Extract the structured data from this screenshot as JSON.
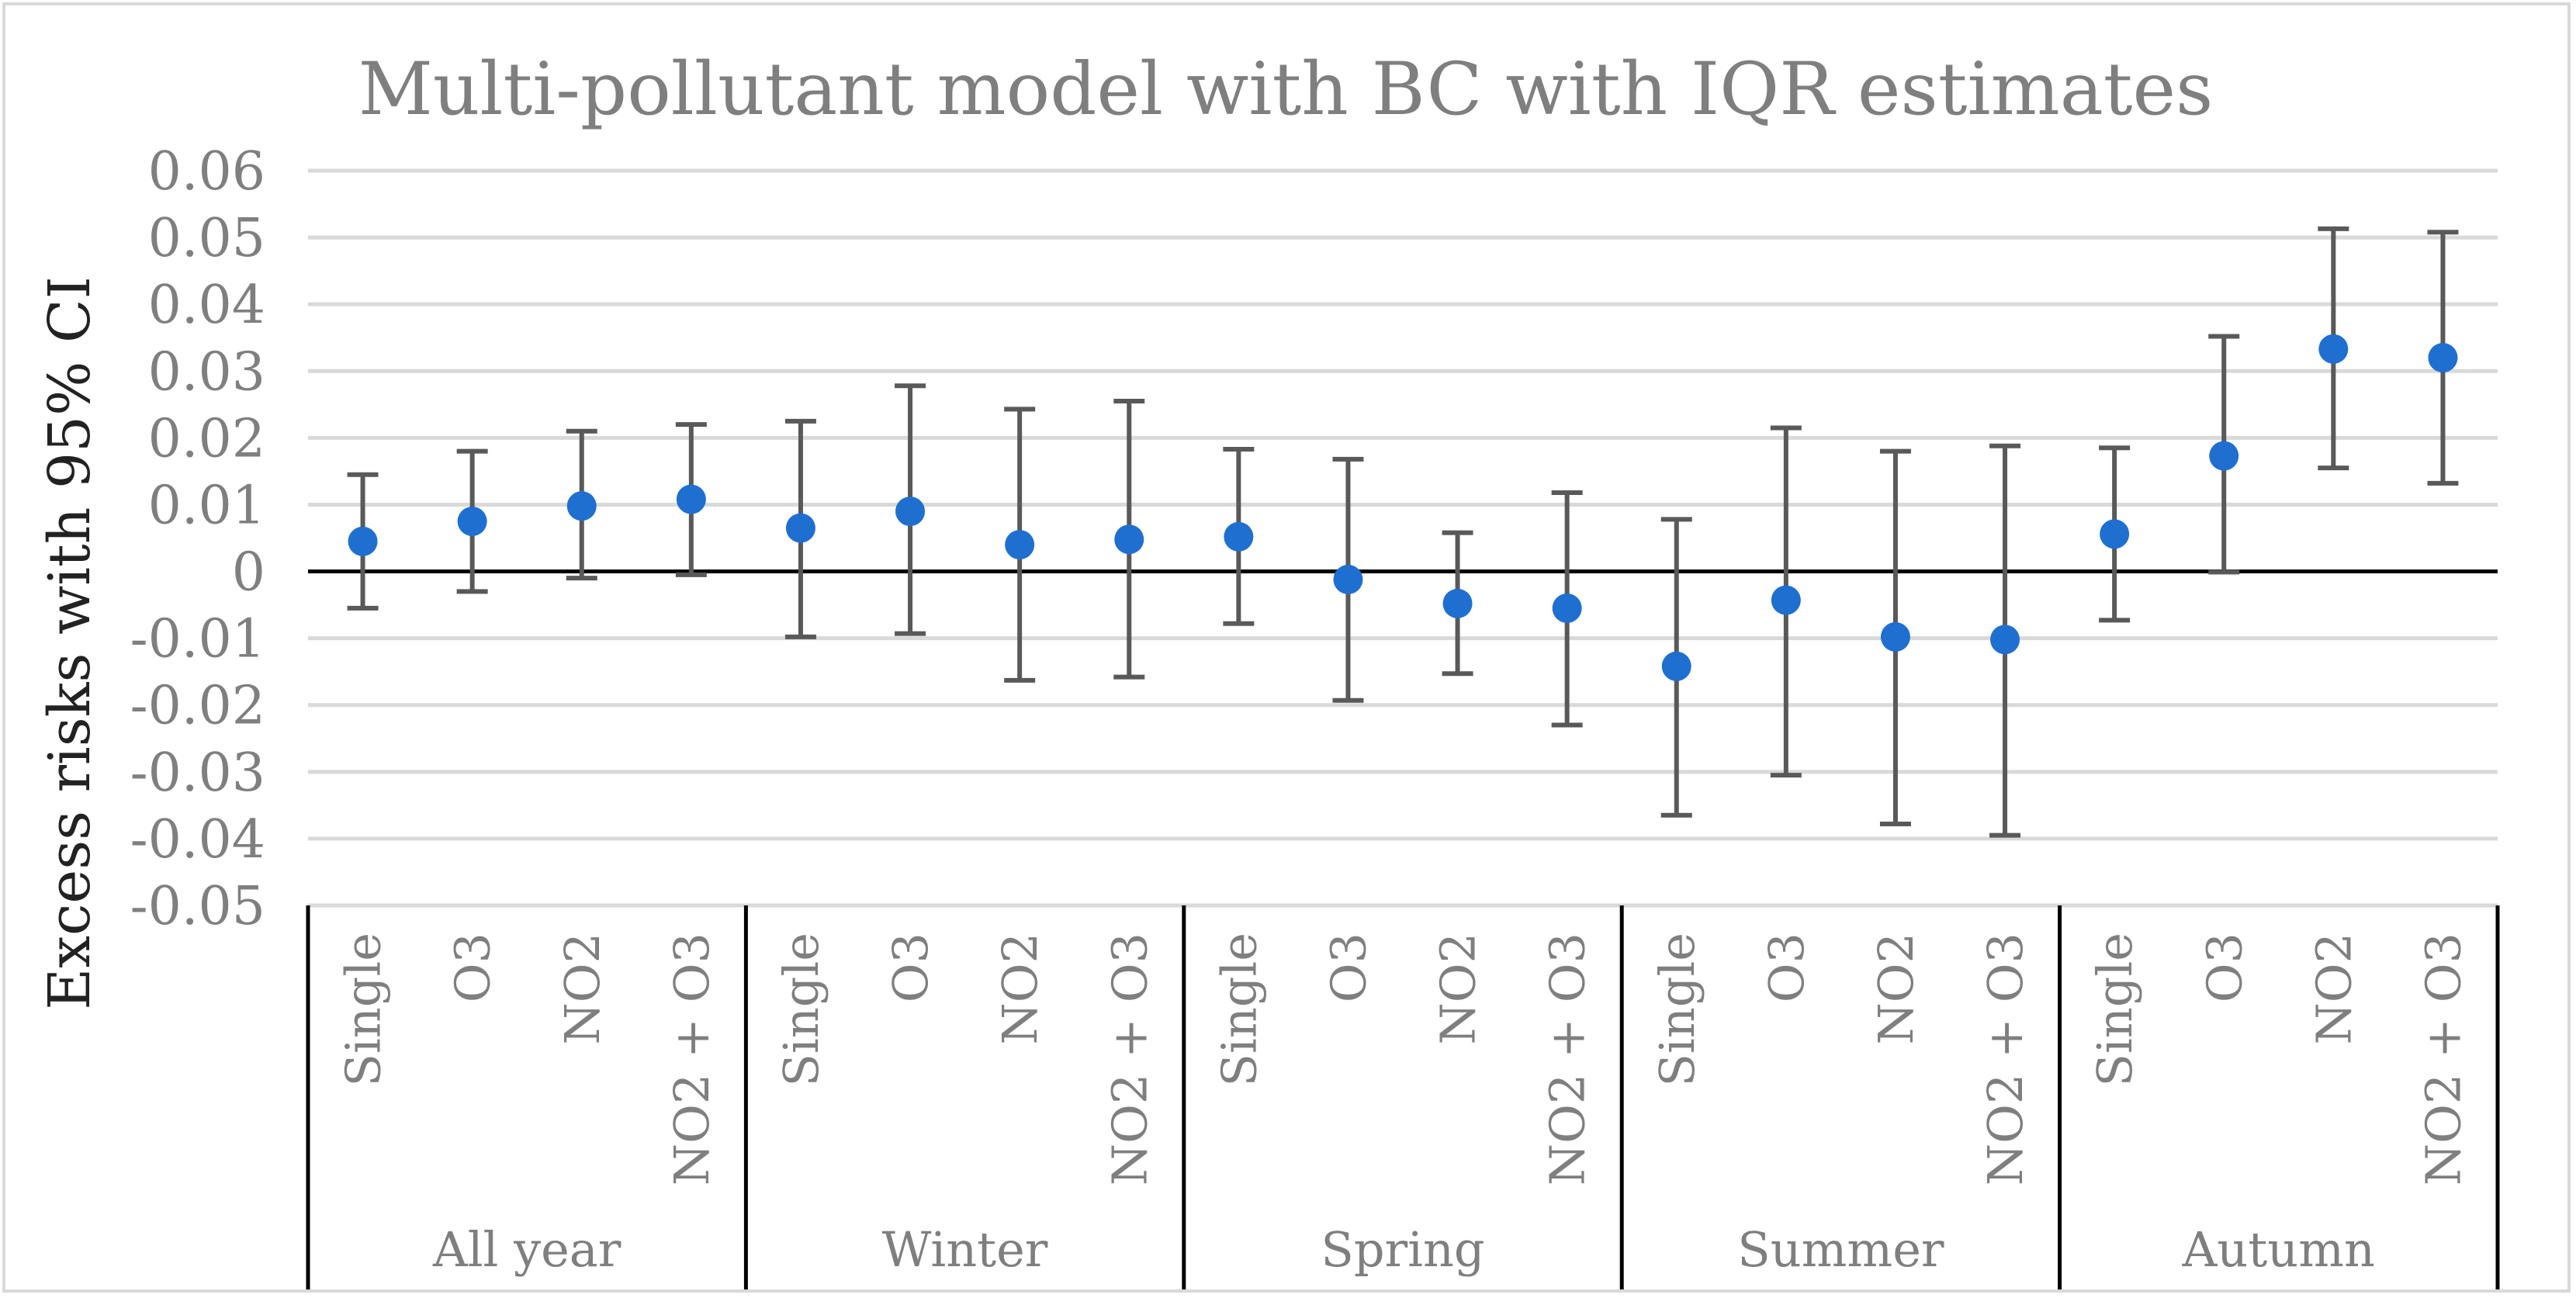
{
  "chart_data": {
    "type": "scatter",
    "title": "Multi-pollutant model with BC with IQR estimates",
    "ylabel": "Excess risks with 95% CI",
    "xlabel": "",
    "ylim": [
      -0.05,
      0.06
    ],
    "ytick_step": 0.01,
    "ytick_labels": [
      "0.06",
      "0.05",
      "0.04",
      "0.03",
      "0.02",
      "0.01",
      "0",
      "-0.01",
      "-0.02",
      "-0.03",
      "-0.04",
      "-0.05"
    ],
    "grid": true,
    "error_bars": "95% CI",
    "marker_color": "#1f6fd0",
    "errorbar_color": "#595959",
    "categories": [
      "Single",
      "O3",
      "NO2",
      "NO2 + O3"
    ],
    "groups": [
      {
        "name": "All year",
        "points": [
          {
            "category": "Single",
            "value": 0.0045,
            "lower": -0.0055,
            "upper": 0.0145
          },
          {
            "category": "O3",
            "value": 0.0075,
            "lower": -0.003,
            "upper": 0.018
          },
          {
            "category": "NO2",
            "value": 0.0098,
            "lower": -0.001,
            "upper": 0.021
          },
          {
            "category": "NO2 + O3",
            "value": 0.0108,
            "lower": -0.0005,
            "upper": 0.022
          }
        ]
      },
      {
        "name": "Winter",
        "points": [
          {
            "category": "Single",
            "value": 0.0065,
            "lower": -0.0098,
            "upper": 0.0225
          },
          {
            "category": "O3",
            "value": 0.009,
            "lower": -0.0093,
            "upper": 0.0278
          },
          {
            "category": "NO2",
            "value": 0.004,
            "lower": -0.0163,
            "upper": 0.0243
          },
          {
            "category": "NO2 + O3",
            "value": 0.0048,
            "lower": -0.0158,
            "upper": 0.0255
          }
        ]
      },
      {
        "name": "Spring",
        "points": [
          {
            "category": "Single",
            "value": 0.0052,
            "lower": -0.0078,
            "upper": 0.0183
          },
          {
            "category": "O3",
            "value": -0.0012,
            "lower": -0.0193,
            "upper": 0.0168
          },
          {
            "category": "NO2",
            "value": -0.0048,
            "lower": -0.0153,
            "upper": 0.0058
          },
          {
            "category": "NO2 + O3",
            "value": -0.0055,
            "lower": -0.023,
            "upper": 0.0118
          }
        ]
      },
      {
        "name": "Summer",
        "points": [
          {
            "category": "Single",
            "value": -0.0142,
            "lower": -0.0365,
            "upper": 0.0078
          },
          {
            "category": "O3",
            "value": -0.0043,
            "lower": -0.0305,
            "upper": 0.0215
          },
          {
            "category": "NO2",
            "value": -0.0098,
            "lower": -0.0378,
            "upper": 0.018
          },
          {
            "category": "NO2 + O3",
            "value": -0.0102,
            "lower": -0.0395,
            "upper": 0.0188
          }
        ]
      },
      {
        "name": "Autumn",
        "points": [
          {
            "category": "Single",
            "value": 0.0056,
            "lower": -0.0073,
            "upper": 0.0185
          },
          {
            "category": "O3",
            "value": 0.0173,
            "lower": -0.0001,
            "upper": 0.0352
          },
          {
            "category": "NO2",
            "value": 0.0333,
            "lower": 0.0155,
            "upper": 0.0513
          },
          {
            "category": "NO2 + O3",
            "value": 0.032,
            "lower": 0.0132,
            "upper": 0.0508
          }
        ]
      }
    ]
  }
}
